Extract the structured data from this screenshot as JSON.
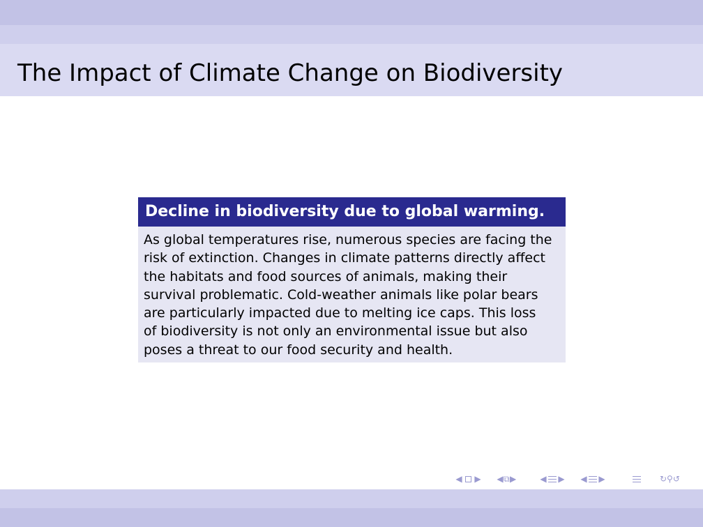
{
  "slide": {
    "title": "The Impact of Climate Change on Biodiversity",
    "block": {
      "title": "Decline in biodiversity due to global warming.",
      "body_lines": [
        "As global temperatures rise, numerous species are facing the",
        "risk of extinction.  Changes in climate patterns directly affect",
        "the habitats and food sources of animals, making their",
        "survival problematic.  Cold-weather animals like polar bears",
        "are particularly impacted due to melting ice caps.  This loss",
        "of biodiversity is not only an environmental issue but also",
        "poses a threat to our food security and health."
      ]
    }
  },
  "theme": {
    "block_title_bg": "#2a2a8f",
    "block_body_bg": "#e6e6f3",
    "header_band": "#dadaf2",
    "nav_color": "#9a9ad0"
  },
  "nav": {
    "icons": [
      "prev-frame-arrow-icon",
      "frame-icon",
      "next-frame-arrow-icon",
      "prev-subsection-arrow-icon",
      "subsection-icon",
      "next-subsection-arrow-icon",
      "prev-section-arrow-icon",
      "section-icon",
      "next-section-arrow-icon",
      "prev-subsec-arrow-icon",
      "subsec-icon",
      "next-subsec-arrow-icon",
      "toc-icon",
      "search-icon"
    ]
  }
}
